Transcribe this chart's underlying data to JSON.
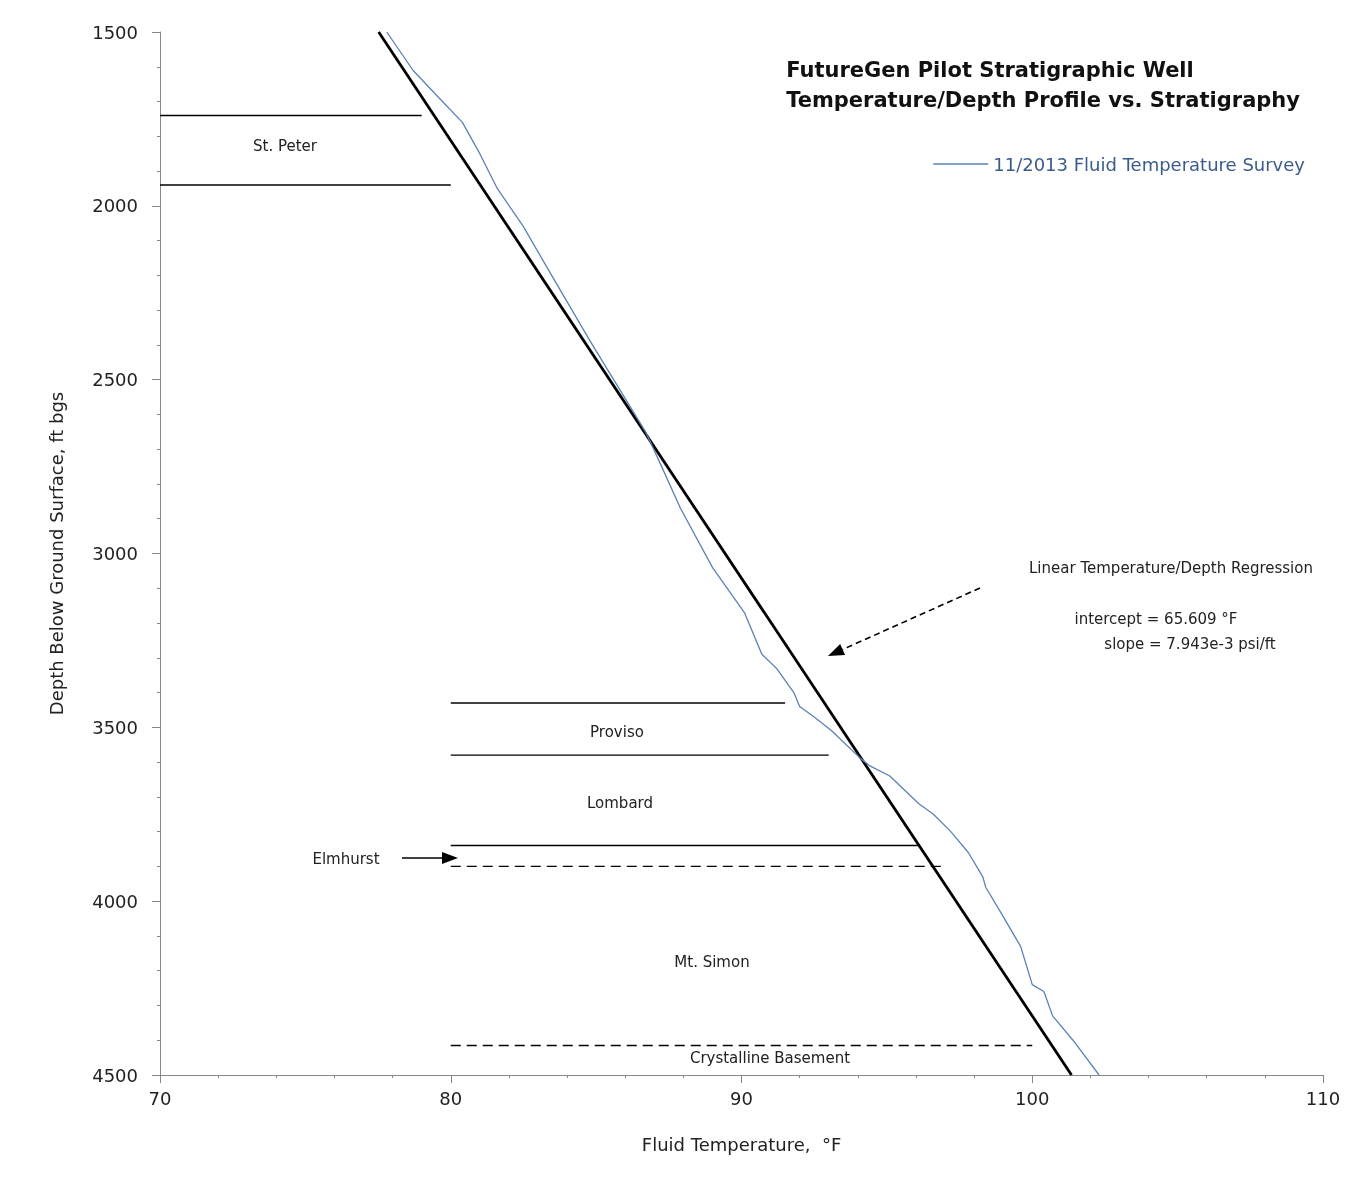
{
  "chart_data": {
    "type": "line",
    "title": "FutureGen Pilot Stratigraphic Well\nTemperature/Depth Profile vs. Stratigraphy",
    "xlabel": "Fluid Temperature,  °F",
    "ylabel": "Depth Below Ground Surface, ft bgs",
    "xlim": [
      70,
      110
    ],
    "xticks": [
      70,
      80,
      90,
      100,
      110
    ],
    "ylim": [
      4500,
      1500
    ],
    "yticks": [
      1500,
      2000,
      2500,
      3000,
      3500,
      4000,
      4500
    ],
    "grid": false,
    "legend": "top right",
    "marker": "none",
    "series": [
      {
        "name": "11/2013 Fluid Temperature Survey",
        "color": "#5b82b5",
        "line_style": "solid",
        "x": [
          77.8,
          78.7,
          79.6,
          80.4,
          81.0,
          81.6,
          82.5,
          83.4,
          84.8,
          86.7,
          87.2,
          87.9,
          89.0,
          90.1,
          90.7,
          91.2,
          91.8,
          92.0,
          92.5,
          93.1,
          94.1,
          94.4,
          95.1,
          96.1,
          96.6,
          97.2,
          97.8,
          98.3,
          98.4,
          98.9,
          99.6,
          100.0,
          100.4,
          100.7,
          101.4,
          102.3
        ],
        "values": [
          1500,
          1610,
          1690,
          1760,
          1850,
          1950,
          2060,
          2190,
          2390,
          2650,
          2740,
          2870,
          3040,
          3170,
          3290,
          3330,
          3400,
          3440,
          3470,
          3510,
          3590,
          3610,
          3640,
          3720,
          3750,
          3800,
          3860,
          3930,
          3960,
          4030,
          4130,
          4240,
          4260,
          4330,
          4400,
          4500
        ]
      },
      {
        "color": "#000000",
        "line_style": "solid",
        "x": [
          77.52,
          101.35
        ],
        "values": [
          1500,
          4500
        ]
      },
      {
        "color": "#000000",
        "line_style": "solid",
        "x": [
          70,
          79.0
        ],
        "values": [
          1740,
          1740
        ]
      },
      {
        "color": "#000000",
        "line_style": "solid",
        "x": [
          70,
          80
        ],
        "values": [
          1940,
          1940
        ]
      },
      {
        "color": "#000000",
        "line_style": "solid",
        "x": [
          80,
          91.5
        ],
        "values": [
          3430,
          3430
        ]
      },
      {
        "color": "#000000",
        "line_style": "solid",
        "x": [
          80,
          93.0
        ],
        "values": [
          3580,
          3580
        ]
      },
      {
        "color": "#000000",
        "line_style": "solid",
        "x": [
          80,
          96.1
        ],
        "values": [
          3840,
          3840
        ]
      },
      {
        "color": "#000000",
        "line_style": "dashed",
        "x": [
          80,
          97.0
        ],
        "values": [
          3900,
          3900
        ]
      },
      {
        "color": "#000000",
        "line_style": "dashed",
        "x": [
          80,
          100
        ],
        "values": [
          4415,
          4415
        ]
      }
    ],
    "annotations": [
      "St. Peter",
      "Proviso",
      "Lombard",
      "Elmhurst",
      "Mt. Simon",
      "Crystalline Basement",
      "Linear Temperature/Depth Regression",
      "intercept  =  65.609 °F",
      "slope  =  7.943e-3 psi/ft"
    ]
  }
}
